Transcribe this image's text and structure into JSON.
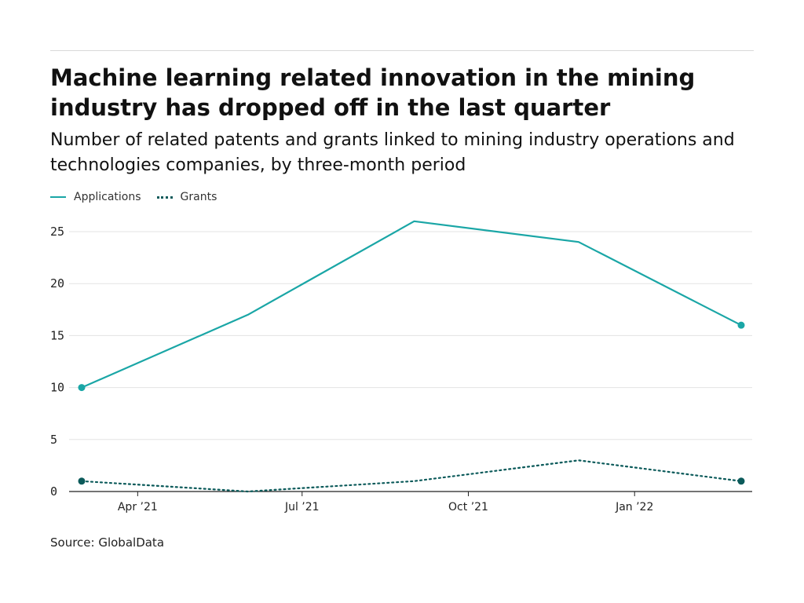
{
  "title": "Machine learning related innovation in the mining industry has dropped off in the last quarter",
  "subtitle": "Number of related patents and grants linked to mining industry operations and technologies companies, by three-month period",
  "source": "Source: GlobalData",
  "colors": {
    "applications": "#1aa6a6",
    "grants": "#0b5a5a",
    "grid": "#e3e3e3",
    "axis": "#222222"
  },
  "chart_data": {
    "type": "line",
    "x": [
      "2021-03-01",
      "2021-06-01",
      "2021-09-01",
      "2021-12-01",
      "2022-03-01"
    ],
    "x_ticks": [
      {
        "date": "2021-04-01",
        "label": "Apr ’21"
      },
      {
        "date": "2021-07-01",
        "label": "Jul ’21"
      },
      {
        "date": "2021-10-01",
        "label": "Oct ’21"
      },
      {
        "date": "2022-01-01",
        "label": "Jan ’22"
      }
    ],
    "series": [
      {
        "name": "Applications",
        "values": [
          10,
          17,
          26,
          24,
          16
        ],
        "style": "solid"
      },
      {
        "name": "Grants",
        "values": [
          1,
          0,
          1,
          3,
          1
        ],
        "style": "dotted"
      }
    ],
    "ylim": [
      0,
      25
    ],
    "y_ticks": [
      0,
      5,
      10,
      15,
      20,
      25
    ],
    "grid": true,
    "legend": "top-left"
  }
}
